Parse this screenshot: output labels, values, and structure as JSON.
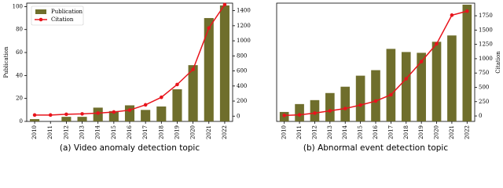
{
  "chart_data": [
    {
      "type": "bar",
      "caption": "(a)  Video anomaly detection topic",
      "categories": [
        "2010",
        "2011",
        "2012",
        "2013",
        "2014",
        "2015",
        "2016",
        "2017",
        "2018",
        "2019",
        "2020",
        "2021",
        "2022"
      ],
      "series": [
        {
          "name": "Publication",
          "color": "#6f6e2c",
          "values": [
            2,
            0,
            4,
            4,
            12,
            9,
            14,
            10,
            13,
            28,
            49,
            90,
            101
          ]
        },
        {
          "name": "Citation",
          "color": "#e8141c",
          "type": "line",
          "axis": "y2",
          "values": [
            15,
            15,
            25,
            30,
            40,
            55,
            80,
            150,
            250,
            420,
            620,
            1170,
            1480
          ]
        }
      ],
      "ylim": [
        0,
        103
      ],
      "yticks": [
        0,
        20,
        40,
        60,
        80,
        100
      ],
      "ylabel": "Publication",
      "y2lim": [
        -70,
        1500
      ],
      "y2ticks": [
        0,
        200,
        400,
        600,
        800,
        1000,
        1200,
        1400
      ],
      "legend": "upper left"
    },
    {
      "type": "bar",
      "caption": "(b)  Abnormal event detection topic",
      "categories": [
        "2010",
        "2011",
        "2012",
        "2013",
        "2014",
        "2015",
        "2016",
        "2017",
        "2018",
        "2019",
        "2020",
        "2021",
        "2022"
      ],
      "series": [
        {
          "name": "Publication",
          "color": "#6f6e2c",
          "values": [
            12,
            22,
            27,
            36,
            44,
            58,
            65,
            92,
            88,
            87,
            101,
            109,
            148
          ]
        },
        {
          "name": "Citation",
          "color": "#e8141c",
          "type": "line",
          "axis": "y2",
          "values": [
            10,
            20,
            50,
            90,
            130,
            190,
            260,
            370,
            650,
            950,
            1260,
            1760,
            1830
          ]
        }
      ],
      "ylim": [
        0,
        150
      ],
      "y2lim": [
        -95,
        1970
      ],
      "y2ticks": [
        0,
        250,
        500,
        750,
        1000,
        1250,
        1500,
        1750
      ],
      "y2label": "Citation"
    }
  ]
}
